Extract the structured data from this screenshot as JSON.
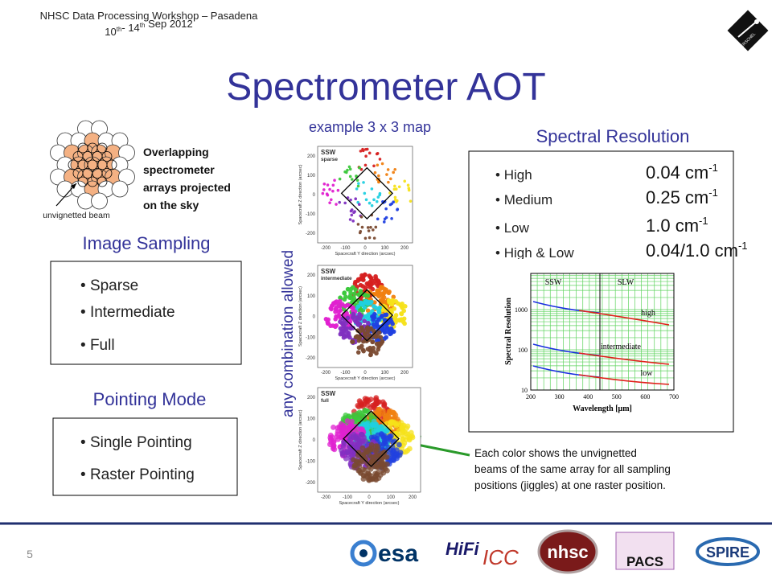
{
  "header": {
    "event": "NHSC Data Processing Workshop – Pasadena",
    "date": {
      "start": "10",
      "start_sup": "th",
      "separator": "- 14",
      "end_sup": "th",
      "rest": " Sep 2012"
    },
    "herschel_logo": "HERSCHEL"
  },
  "title": "Spectrometer AOT",
  "example_label": "example 3 x 3 map",
  "beam_diagram": {
    "caption": [
      "Overlapping",
      "spectrometer",
      "arrays projected",
      "on the sky"
    ],
    "pointer_label": "unvignetted beam"
  },
  "image_sampling": {
    "heading": "Image Sampling",
    "items": [
      "Sparse",
      "Intermediate",
      "Full"
    ]
  },
  "pointing_mode": {
    "heading": "Pointing Mode",
    "items": [
      "Single Pointing",
      "Raster Pointing"
    ]
  },
  "combination_note": "any combination allowed",
  "maps": {
    "panels": [
      {
        "label": [
          "SSW",
          "sparse"
        ]
      },
      {
        "label": [
          "SSW",
          "intermediate"
        ]
      },
      {
        "label": [
          "SSW",
          "full"
        ]
      }
    ],
    "y_axis_label": "Spacecraft Z direction (arcsec)",
    "x_axis_label": "Spacecraft Y direction (arcsec)",
    "ticks": [
      "200",
      "100",
      "0",
      "-100",
      "-200"
    ]
  },
  "spectral_resolution": {
    "heading": "Spectral Resolution",
    "items": [
      {
        "name": "High",
        "value": "0.04 cm",
        "sup": "-1"
      },
      {
        "name": "Medium",
        "value": "0.25 cm",
        "sup": "-1"
      },
      {
        "name": "Low",
        "value": "1.0 cm",
        "sup": "-1"
      },
      {
        "name": "High & Low",
        "value": "0.04/1.0 cm",
        "sup": "-1"
      }
    ],
    "plot": {
      "left_label": "SSW",
      "right_label": "SLW",
      "curves": [
        "high",
        "intermediate",
        "low"
      ],
      "y_label": "Spectral Resolution",
      "x_label": "Wavelength [μm]",
      "y_ticks": [
        "1000",
        "100",
        "10"
      ],
      "x_ticks": [
        "200",
        "300",
        "400",
        "500",
        "600",
        "700"
      ]
    }
  },
  "footnote": [
    "Each color shows the unvignetted",
    "beams of the same array for all sampling",
    "positions (jiggles) at one raster position."
  ],
  "page_number": "5",
  "logos": [
    "esa",
    "HiFi",
    "ICC",
    "nhsc",
    "PACS",
    "SPIRE"
  ]
}
